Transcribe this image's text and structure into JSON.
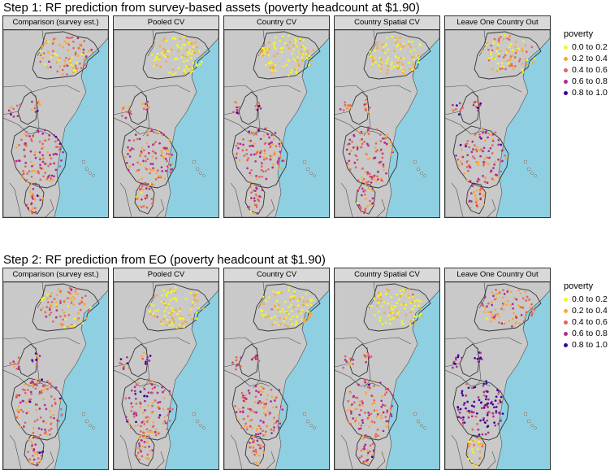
{
  "sections": [
    {
      "title": "Step 1: RF prediction from survey-based assets (poverty headcount at $1.90)",
      "panels": [
        {
          "label": "Comparison (survey est.)",
          "eth": [
            0.2,
            0.55,
            0.5,
            0.15
          ],
          "ken": [
            0.6,
            0.6,
            0.45,
            0.45
          ],
          "tan": [
            0.45,
            0.65,
            0.5,
            0.65
          ]
        },
        {
          "label": "Pooled CV",
          "eth": [
            0.1,
            0.15,
            0.15,
            0.1
          ],
          "ken": [
            0.55,
            0.55,
            0.45,
            0.45
          ],
          "tan": [
            0.45,
            0.45,
            0.45,
            0.6
          ]
        },
        {
          "label": "Country CV",
          "eth": [
            0.1,
            0.15,
            0.15,
            0.1
          ],
          "ken": [
            0.6,
            0.55,
            0.45,
            0.45
          ],
          "tan": [
            0.45,
            0.45,
            0.4,
            0.6
          ]
        },
        {
          "label": "Country Spatial CV",
          "eth": [
            0.1,
            0.15,
            0.15,
            0.1
          ],
          "ken": [
            0.55,
            0.55,
            0.45,
            0.45
          ],
          "tan": [
            0.45,
            0.45,
            0.45,
            0.6
          ]
        },
        {
          "label": "Leave One Country Out",
          "eth": [
            0.2,
            0.3,
            0.3,
            0.2
          ],
          "ken": [
            0.6,
            0.6,
            0.5,
            0.5
          ],
          "tan": [
            0.45,
            0.5,
            0.45,
            0.5
          ]
        }
      ]
    },
    {
      "title": "Step 2: RF prediction from EO (poverty headcount at $1.90)",
      "panels": [
        {
          "label": "Comparison (survey est.)",
          "eth": [
            0.2,
            0.55,
            0.5,
            0.15
          ],
          "ken": [
            0.6,
            0.6,
            0.45,
            0.45
          ],
          "tan": [
            0.45,
            0.65,
            0.5,
            0.65
          ]
        },
        {
          "label": "Pooled CV",
          "eth": [
            0.1,
            0.15,
            0.15,
            0.1
          ],
          "ken": [
            0.65,
            0.6,
            0.5,
            0.5
          ],
          "tan": [
            0.5,
            0.45,
            0.45,
            0.6
          ]
        },
        {
          "label": "Country CV",
          "eth": [
            0.1,
            0.2,
            0.2,
            0.1
          ],
          "ken": [
            0.6,
            0.55,
            0.45,
            0.45
          ],
          "tan": [
            0.45,
            0.45,
            0.45,
            0.55
          ]
        },
        {
          "label": "Country Spatial CV",
          "eth": [
            0.1,
            0.15,
            0.15,
            0.1
          ],
          "ken": [
            0.55,
            0.55,
            0.45,
            0.45
          ],
          "tan": [
            0.45,
            0.45,
            0.45,
            0.6
          ]
        },
        {
          "label": "Leave One Country Out",
          "eth": [
            0.45,
            0.45,
            0.45,
            0.45
          ],
          "ken": [
            0.85,
            0.85,
            0.8,
            0.75
          ],
          "tan": [
            0.2,
            0.25,
            0.2,
            0.25
          ]
        }
      ]
    }
  ],
  "legend": {
    "title": "poverty",
    "items": [
      {
        "label": "0.0 to 0.2",
        "color": "#f0f921"
      },
      {
        "label": "0.2 to 0.4",
        "color": "#fca636"
      },
      {
        "label": "0.4 to 0.6",
        "color": "#e16462"
      },
      {
        "label": "0.6 to 0.8",
        "color": "#b12a90"
      },
      {
        "label": "0.8 to 1.0",
        "color": "#3a049a"
      }
    ]
  },
  "map_colors": {
    "sea": "#8ed0e2",
    "land": "#c9c9c9",
    "border": "#4d4d4d"
  }
}
